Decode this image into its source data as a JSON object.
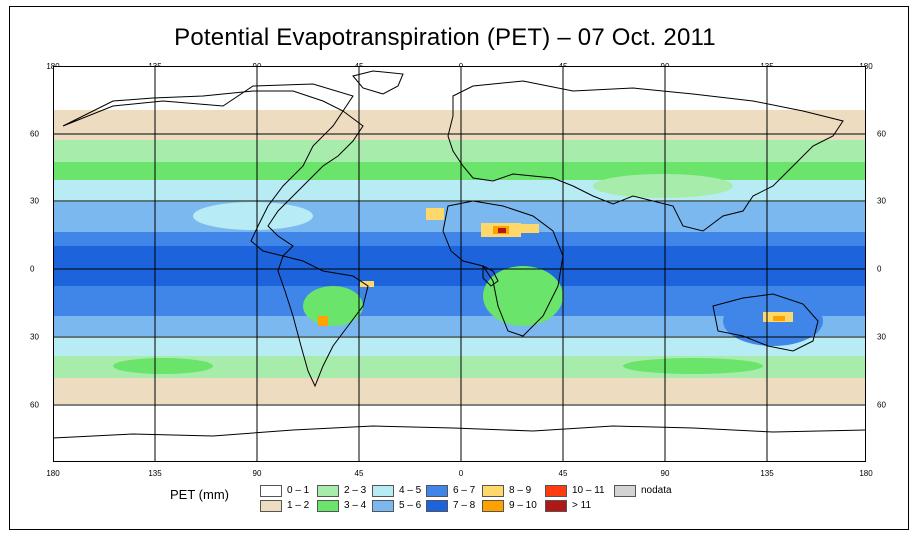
{
  "title": "Potential Evapotranspiration (PET) – 07 Oct. 2011",
  "lon_labels": [
    "180",
    "135",
    "90",
    "45",
    "0",
    "45",
    "90",
    "135",
    "180"
  ],
  "lat_labels": [
    "60",
    "30",
    "0",
    "30",
    "60"
  ],
  "legend": {
    "title": "PET (mm)",
    "items": [
      {
        "label": "0 – 1",
        "color": "#ffffff"
      },
      {
        "label": "1 – 2",
        "color": "#eddcc0"
      },
      {
        "label": "2 – 3",
        "color": "#a8ecac"
      },
      {
        "label": "3 – 4",
        "color": "#6ae46a"
      },
      {
        "label": "4 – 5",
        "color": "#b8ecf4"
      },
      {
        "label": "5 – 6",
        "color": "#7cb8f0"
      },
      {
        "label": "6 – 7",
        "color": "#3f86e8"
      },
      {
        "label": "7 – 8",
        "color": "#1c63dc"
      },
      {
        "label": "8 – 9",
        "color": "#ffd86c"
      },
      {
        "label": "9 – 10",
        "color": "#ffa200"
      },
      {
        "label": "10 – 11",
        "color": "#ff3b10"
      },
      {
        "label": "> 11",
        "color": "#b01818"
      },
      {
        "label": "nodata",
        "color": "#d3d3d3"
      }
    ]
  }
}
